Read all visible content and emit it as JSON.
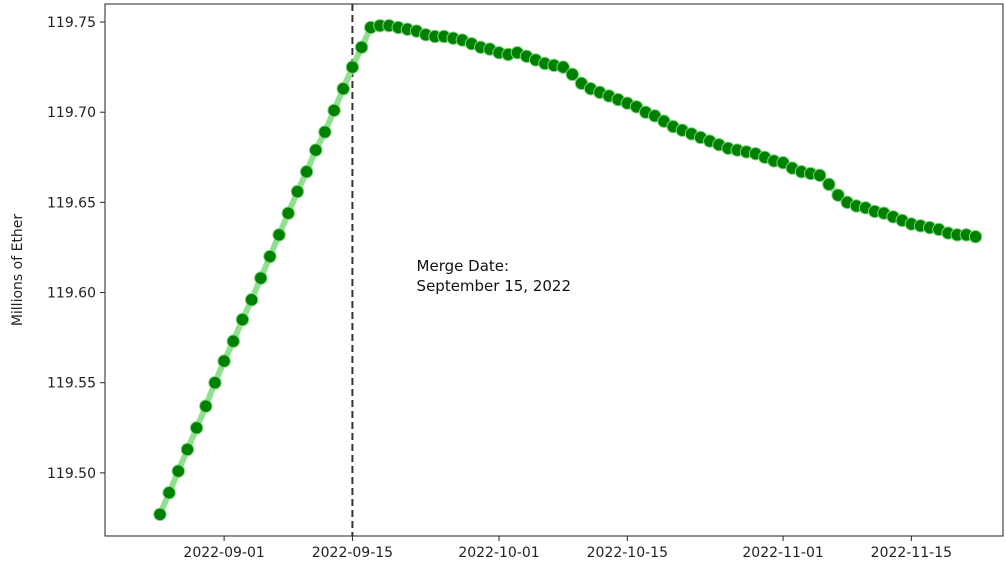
{
  "chart_data": {
    "type": "line",
    "title": "",
    "xlabel": "",
    "ylabel": "Millions of Ether",
    "x_axis_type": "date",
    "xlim": [
      "2022-08-19",
      "2022-11-25"
    ],
    "ylim": [
      119.465,
      119.76
    ],
    "x_ticks": [
      "2022-09-01",
      "2022-09-15",
      "2022-10-01",
      "2022-10-15",
      "2022-11-01",
      "2022-11-15"
    ],
    "y_ticks": [
      "119.50",
      "119.55",
      "119.60",
      "119.65",
      "119.70",
      "119.75"
    ],
    "grid": false,
    "legend": "none",
    "series": [
      {
        "name": "",
        "line_color": "#8fe08f",
        "marker_color": "#008000",
        "x": [
          "2022-08-25",
          "2022-08-26",
          "2022-08-27",
          "2022-08-28",
          "2022-08-29",
          "2022-08-30",
          "2022-08-31",
          "2022-09-01",
          "2022-09-02",
          "2022-09-03",
          "2022-09-04",
          "2022-09-05",
          "2022-09-06",
          "2022-09-07",
          "2022-09-08",
          "2022-09-09",
          "2022-09-10",
          "2022-09-11",
          "2022-09-12",
          "2022-09-13",
          "2022-09-14",
          "2022-09-15",
          "2022-09-16",
          "2022-09-17",
          "2022-09-18",
          "2022-09-19",
          "2022-09-20",
          "2022-09-21",
          "2022-09-22",
          "2022-09-23",
          "2022-09-24",
          "2022-09-25",
          "2022-09-26",
          "2022-09-27",
          "2022-09-28",
          "2022-09-29",
          "2022-09-30",
          "2022-10-01",
          "2022-10-02",
          "2022-10-03",
          "2022-10-04",
          "2022-10-05",
          "2022-10-06",
          "2022-10-07",
          "2022-10-08",
          "2022-10-09",
          "2022-10-10",
          "2022-10-11",
          "2022-10-12",
          "2022-10-13",
          "2022-10-14",
          "2022-10-15",
          "2022-10-16",
          "2022-10-17",
          "2022-10-18",
          "2022-10-19",
          "2022-10-20",
          "2022-10-21",
          "2022-10-22",
          "2022-10-23",
          "2022-10-24",
          "2022-10-25",
          "2022-10-26",
          "2022-10-27",
          "2022-10-28",
          "2022-10-29",
          "2022-10-30",
          "2022-10-31",
          "2022-11-01",
          "2022-11-02",
          "2022-11-03",
          "2022-11-04",
          "2022-11-05",
          "2022-11-06",
          "2022-11-07",
          "2022-11-08",
          "2022-11-09",
          "2022-11-10",
          "2022-11-11",
          "2022-11-12",
          "2022-11-13",
          "2022-11-14",
          "2022-11-15",
          "2022-11-16",
          "2022-11-17",
          "2022-11-18",
          "2022-11-19",
          "2022-11-20",
          "2022-11-21",
          "2022-11-22"
        ],
        "y": [
          119.477,
          119.489,
          119.501,
          119.513,
          119.525,
          119.537,
          119.55,
          119.562,
          119.573,
          119.585,
          119.596,
          119.608,
          119.62,
          119.632,
          119.644,
          119.656,
          119.667,
          119.679,
          119.689,
          119.701,
          119.713,
          119.725,
          119.736,
          119.747,
          119.748,
          119.748,
          119.747,
          119.746,
          119.745,
          119.743,
          119.742,
          119.742,
          119.741,
          119.74,
          119.738,
          119.736,
          119.735,
          119.733,
          119.732,
          119.733,
          119.731,
          119.729,
          119.727,
          119.726,
          119.725,
          119.721,
          119.716,
          119.713,
          119.711,
          119.709,
          119.707,
          119.705,
          119.703,
          119.7,
          119.698,
          119.695,
          119.692,
          119.69,
          119.688,
          119.686,
          119.684,
          119.682,
          119.68,
          119.679,
          119.678,
          119.677,
          119.675,
          119.673,
          119.672,
          119.669,
          119.667,
          119.666,
          119.665,
          119.66,
          119.654,
          119.65,
          119.648,
          119.647,
          119.645,
          119.644,
          119.642,
          119.64,
          119.638,
          119.637,
          119.636,
          119.635,
          119.633,
          119.632,
          119.632,
          119.631
        ]
      }
    ],
    "reference_line": {
      "x": "2022-09-15",
      "style": "dashed",
      "color": "#333333"
    },
    "annotation": {
      "lines": [
        "Merge Date:",
        "September 15, 2022"
      ],
      "x": "2022-09-22",
      "y": 119.612
    }
  }
}
